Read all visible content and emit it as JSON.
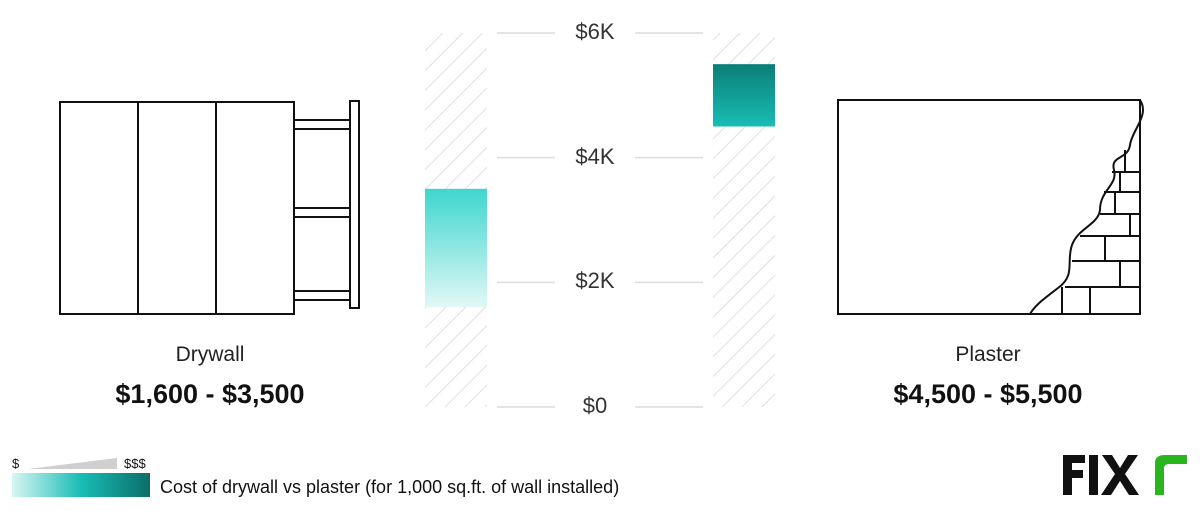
{
  "chart_data": {
    "type": "bar",
    "title": "",
    "categories": [
      "Drywall",
      "Plaster"
    ],
    "series": [
      {
        "values": [
          [
            1600,
            3500
          ],
          [
            4500,
            5500
          ]
        ]
      }
    ],
    "value_labels": [
      "$1,600 - $3,500",
      "$4,500 - $5,500"
    ],
    "ylim": [
      0,
      6000
    ],
    "yticks": [
      {
        "value": 0,
        "label": "$0"
      },
      {
        "value": 2000,
        "label": "$2K"
      },
      {
        "value": 4000,
        "label": "$4K"
      },
      {
        "value": 6000,
        "label": "$6K"
      }
    ],
    "bar_colors": {
      "drywall": [
        "#3ed6cf",
        "#d8f6f4"
      ],
      "plaster": [
        "#0b7e78",
        "#18bdb5"
      ]
    },
    "grid": "hatched bar tracks",
    "legend": {
      "low_symbol": "$",
      "high_symbol": "$$$",
      "text": "Cost of drywall vs plaster (for 1,000 sq.ft. of wall installed)",
      "gradient": [
        "#d8f6f4",
        "#18bdb5",
        "#0b6e69"
      ]
    }
  },
  "labels": {
    "left_name": "Drywall",
    "left_range": "$1,600 - $3,500",
    "right_name": "Plaster",
    "right_range": "$4,500 - $5,500"
  },
  "brand": {
    "logo_text": "FIXR",
    "accent": "#2ab51f"
  }
}
